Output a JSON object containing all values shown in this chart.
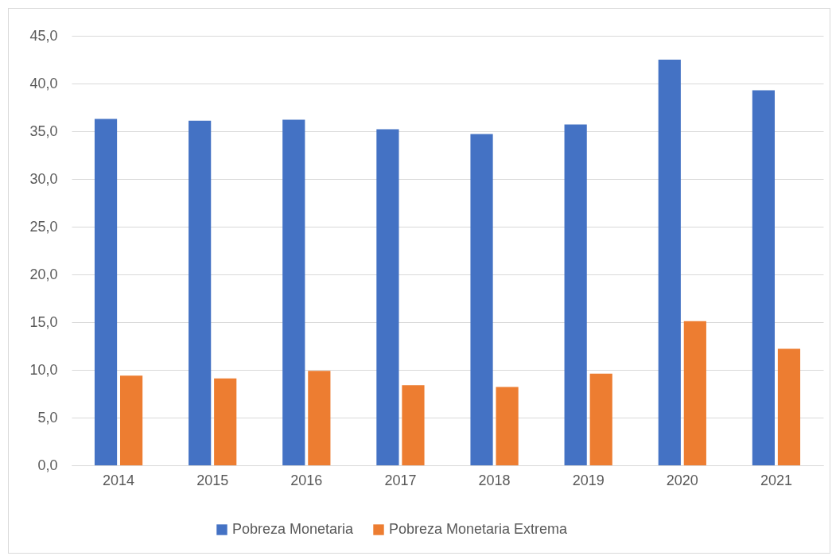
{
  "chart_data": {
    "type": "bar",
    "categories": [
      "2014",
      "2015",
      "2016",
      "2017",
      "2018",
      "2019",
      "2020",
      "2021"
    ],
    "series": [
      {
        "name": "Pobreza Monetaria",
        "color": "#4472c4",
        "values": [
          36.3,
          36.1,
          36.2,
          35.2,
          34.7,
          35.7,
          42.5,
          39.3
        ]
      },
      {
        "name": "Pobreza Monetaria Extrema",
        "color": "#ed7d31",
        "values": [
          9.4,
          9.1,
          9.9,
          8.4,
          8.2,
          9.6,
          15.1,
          12.2
        ]
      }
    ],
    "ylim": [
      0,
      45
    ],
    "yticks": [
      {
        "value": 0,
        "label": "0,0"
      },
      {
        "value": 5,
        "label": "5,0"
      },
      {
        "value": 10,
        "label": "10,0"
      },
      {
        "value": 15,
        "label": "15,0"
      },
      {
        "value": 20,
        "label": "20,0"
      },
      {
        "value": 25,
        "label": "25,0"
      },
      {
        "value": 30,
        "label": "30,0"
      },
      {
        "value": 35,
        "label": "35,0"
      },
      {
        "value": 40,
        "label": "40,0"
      },
      {
        "value": 45,
        "label": "45,0"
      }
    ],
    "grid": "y",
    "legend": "bottom"
  }
}
